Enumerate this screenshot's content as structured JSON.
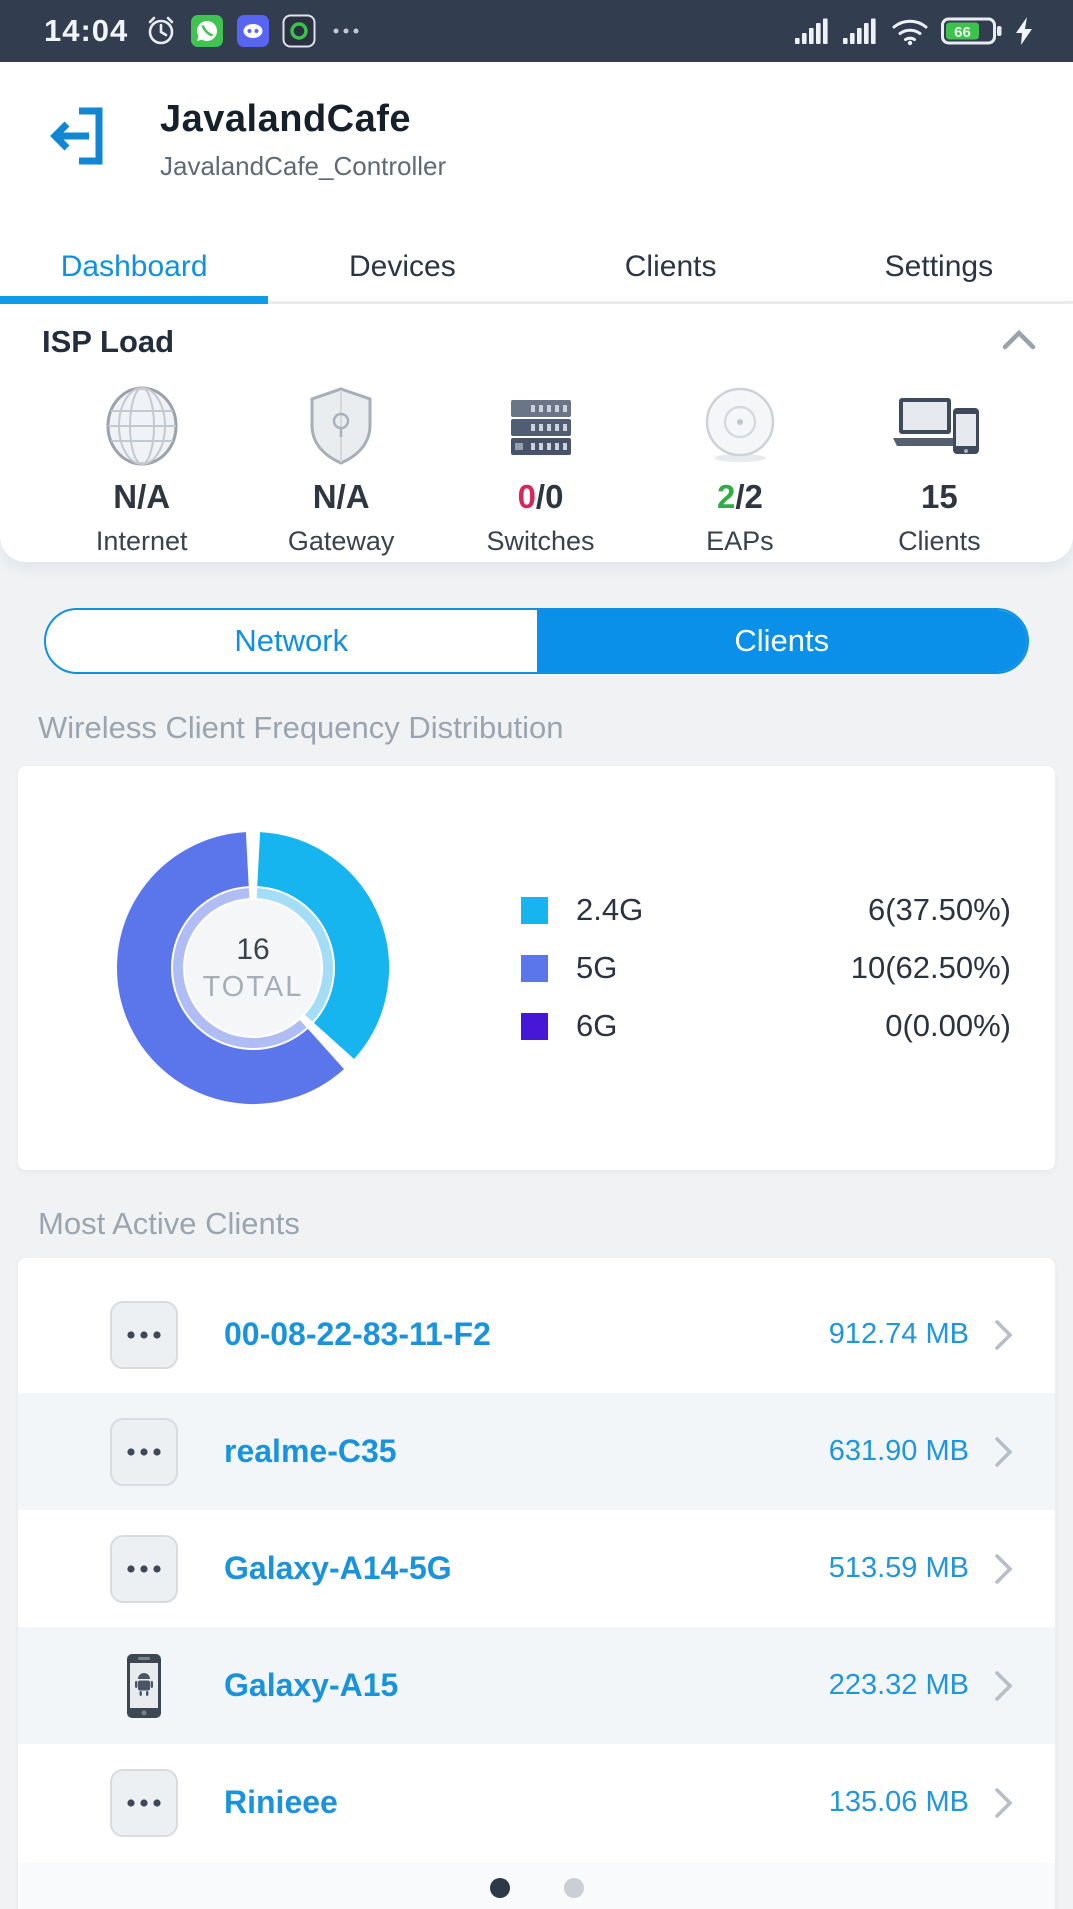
{
  "status_bar": {
    "time": "14:04",
    "left_icons": [
      "alarm-clock-icon",
      "whatsapp-icon",
      "discord-icon",
      "camera-app-icon",
      "more-icon"
    ],
    "right_icons": [
      "cell-signal-icon",
      "cell-signal-icon",
      "wifi-icon"
    ],
    "battery": "66",
    "charging": true
  },
  "header": {
    "title": "JavalandCafe",
    "subtitle": "JavalandCafe_Controller"
  },
  "tabs": {
    "items": [
      {
        "label": "Dashboard",
        "active": true
      },
      {
        "label": "Devices",
        "active": false
      },
      {
        "label": "Clients",
        "active": false
      },
      {
        "label": "Settings",
        "active": false
      }
    ]
  },
  "isp_load": {
    "title": "ISP Load",
    "collapse_icon": "chevron-up-icon",
    "items": [
      {
        "icon": "internet-globe-icon",
        "label": "Internet",
        "value_parts": [
          {
            "text": "N/A"
          }
        ]
      },
      {
        "icon": "gateway-shield-icon",
        "label": "Gateway",
        "value_parts": [
          {
            "text": "N/A"
          }
        ]
      },
      {
        "icon": "switch-icon",
        "label": "Switches",
        "value_parts": [
          {
            "text": "0",
            "color": "#d6275a"
          },
          {
            "text": "/0"
          }
        ]
      },
      {
        "icon": "eap-icon",
        "label": "EAPs",
        "value_parts": [
          {
            "text": "2",
            "color": "#2fae44"
          },
          {
            "text": "/2"
          }
        ]
      },
      {
        "icon": "clients-devices-icon",
        "label": "Clients",
        "value_parts": [
          {
            "text": "15"
          }
        ]
      }
    ]
  },
  "view_toggle": {
    "options": [
      {
        "label": "Network",
        "selected": false
      },
      {
        "label": "Clients",
        "selected": true
      }
    ]
  },
  "sections": {
    "frequency_title": "Wireless Client Frequency Distribution",
    "most_active_title": "Most Active Clients"
  },
  "chart_data": {
    "type": "pie",
    "subtype": "donut",
    "title": "Wireless Client Frequency Distribution",
    "categories": [
      "2.4G",
      "5G",
      "6G"
    ],
    "values": [
      6,
      10,
      0
    ],
    "value_labels": [
      "6(37.50%)",
      "10(62.50%)",
      "0(0.00%)"
    ],
    "colors": [
      "#16b5f0",
      "#5b76ea",
      "#4617d6"
    ],
    "colors_light": [
      "#a3ddf6",
      "#b0bcf4",
      "#b4a3ea"
    ],
    "center": {
      "value": "16",
      "label": "TOTAL"
    },
    "legend_position": "right",
    "start_angle_deg": -90,
    "direction": "clockwise"
  },
  "most_active_clients": {
    "rows": [
      {
        "icon": "device-generic-icon",
        "name": "00-08-22-83-11-F2",
        "traffic": "912.74 MB"
      },
      {
        "icon": "device-generic-icon",
        "name": "realme-C35",
        "traffic": "631.90 MB"
      },
      {
        "icon": "device-generic-icon",
        "name": "Galaxy-A14-5G",
        "traffic": "513.59 MB"
      },
      {
        "icon": "android-phone-icon",
        "name": "Galaxy-A15",
        "traffic": "223.32 MB"
      },
      {
        "icon": "device-generic-icon",
        "name": "Rinieee",
        "traffic": "135.06 MB"
      }
    ]
  },
  "pagination": {
    "count": 2,
    "active": 0
  },
  "colors": {
    "brand_blue": "#0a90e8",
    "tab_active_blue": "#1090e0",
    "status_red": "#d6275a",
    "status_green": "#2fae44",
    "client_link_blue": "#1b93dc"
  }
}
